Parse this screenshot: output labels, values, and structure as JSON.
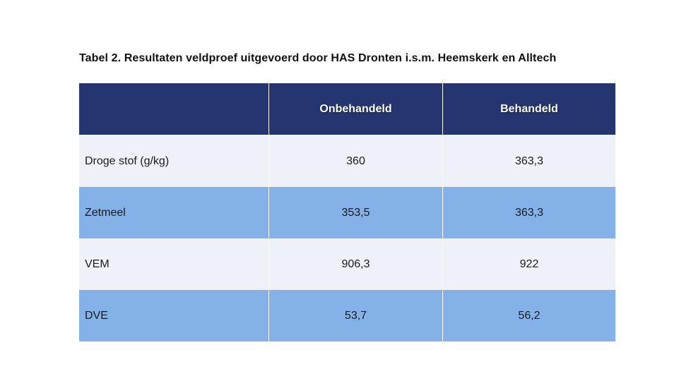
{
  "title": "Tabel 2. Resultaten veldproef uitgevoerd door HAS Dronten i.s.m. Heemskerk en Alltech",
  "table": {
    "headers": [
      "",
      "Onbehandeld",
      "Behandeld"
    ],
    "rows": [
      {
        "label": "Droge stof (g/kg)",
        "onbehandeld": "360",
        "behandeld": "363,3"
      },
      {
        "label": "Zetmeel",
        "onbehandeld": "353,5",
        "behandeld": "363,3"
      },
      {
        "label": "VEM",
        "onbehandeld": "906,3",
        "behandeld": "922"
      },
      {
        "label": "DVE",
        "onbehandeld": "53,7",
        "behandeld": "56,2"
      }
    ]
  },
  "colors": {
    "header_bg": "#253570",
    "row_light": "#eef1f8",
    "row_blue": "#84b2e8"
  }
}
